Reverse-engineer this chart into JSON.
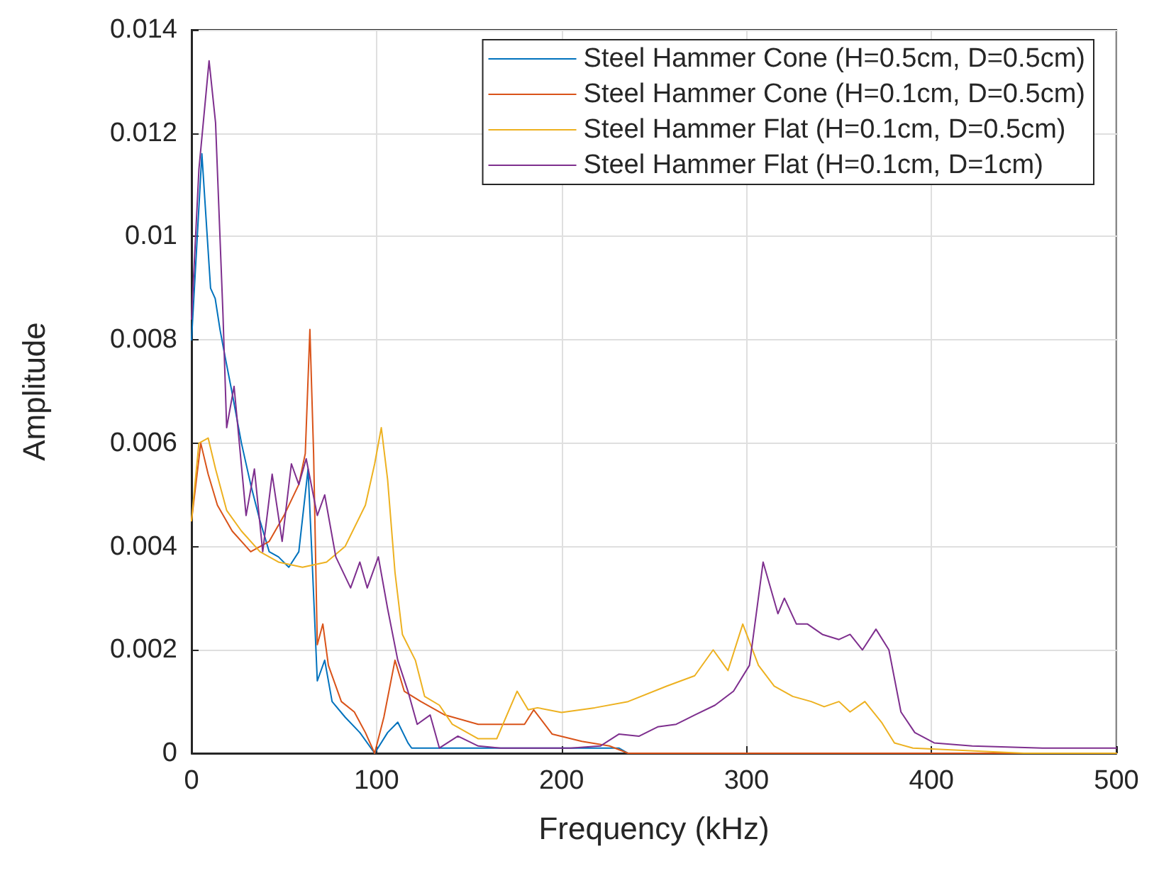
{
  "chart_data": {
    "type": "line",
    "xlabel": "Frequency (kHz)",
    "ylabel": "Amplitude",
    "xlim": [
      0,
      500
    ],
    "xticks": [
      0,
      100,
      200,
      300,
      400,
      500
    ],
    "ylim": [
      0,
      0.014
    ],
    "yticks": [
      0,
      0.002,
      0.004,
      0.006,
      0.008,
      0.01,
      0.012,
      0.014
    ],
    "grid": true,
    "legend": "top right",
    "marker": "none",
    "line_style": "solid",
    "series": [
      {
        "name": "Steel Hammer Cone (H=0.5cm, D=0.5cm)",
        "color": "#0072bd",
        "x": [
          0,
          5.6,
          10.3,
          12.8,
          15.4,
          18,
          21.8,
          27,
          32,
          37,
          42,
          47,
          52.6,
          58,
          63,
          65,
          68,
          72,
          76,
          83,
          91,
          99,
          106,
          111.5,
          117,
          119,
          152,
          231,
          236
        ],
        "values": [
          0.008,
          0.0116,
          0.009,
          0.0088,
          0.0082,
          0.0077,
          0.007,
          0.006,
          0.0052,
          0.0045,
          0.0039,
          0.0038,
          0.0036,
          0.0039,
          0.0055,
          0.0039,
          0.0014,
          0.0018,
          0.001,
          0.0007,
          0.0004,
          0,
          0.0004,
          0.0006,
          0.0002,
          0.0001,
          0.0001,
          0.0001,
          0
        ]
      },
      {
        "name": "Steel Hammer Cone (H=0.1cm, D=0.5cm)",
        "color": "#d95319",
        "x": [
          0,
          5,
          9,
          14,
          22,
          32,
          42,
          50,
          58,
          61.5,
          64,
          66,
          68,
          71,
          74,
          81,
          88,
          94,
          99,
          104,
          110,
          115,
          124,
          137,
          155,
          170,
          180,
          185,
          195,
          211,
          226,
          236,
          300,
          400,
          500
        ],
        "values": [
          0.0045,
          0.006,
          0.0054,
          0.0048,
          0.0043,
          0.0039,
          0.0041,
          0.0046,
          0.0052,
          0.0058,
          0.0082,
          0.0058,
          0.0021,
          0.0025,
          0.0017,
          0.001,
          0.0008,
          0.0004,
          0,
          0.0007,
          0.0018,
          0.0012,
          0.001,
          0.00074,
          0.00056,
          0.00056,
          0.00056,
          0.00084,
          0.00037,
          0.00023,
          0.00014,
          0,
          0,
          0,
          0
        ]
      },
      {
        "name": "Steel Hammer Flat (H=0.1cm, D=0.5cm)",
        "color": "#edb120",
        "x": [
          0,
          4,
          9,
          13,
          19,
          27,
          37,
          47,
          60,
          73,
          83,
          94,
          99,
          102.6,
          106,
          110,
          114,
          121,
          126,
          134,
          141,
          155,
          165,
          176,
          182,
          187,
          200,
          218,
          236,
          257,
          272,
          282,
          290,
          298,
          306.5,
          315,
          325,
          335,
          342,
          350,
          356,
          364,
          373,
          380,
          390,
          450,
          500
        ],
        "values": [
          0.0045,
          0.006,
          0.0061,
          0.0055,
          0.0047,
          0.0043,
          0.0039,
          0.0037,
          0.0036,
          0.0037,
          0.004,
          0.0048,
          0.0056,
          0.0063,
          0.0053,
          0.0035,
          0.0023,
          0.0018,
          0.0011,
          0.00093,
          0.00056,
          0.00028,
          0.00028,
          0.0012,
          0.00084,
          0.00088,
          0.00079,
          0.00088,
          0.001,
          0.0013,
          0.0015,
          0.002,
          0.0016,
          0.0025,
          0.0017,
          0.0013,
          0.0011,
          0.001,
          0.0009,
          0.001,
          0.0008,
          0.001,
          0.0006,
          0.0002,
          0.0001,
          0,
          0
        ]
      },
      {
        "name": "Steel Hammer Flat (H=0.1cm, D=1cm)",
        "color": "#7e2f8e",
        "x": [
          0,
          4,
          9.5,
          13,
          17,
          19,
          23,
          29.5,
          34,
          38.5,
          43.6,
          49,
          54,
          58,
          62,
          68,
          72,
          78,
          86,
          91,
          95,
          101,
          106,
          111.5,
          117,
          122,
          129,
          134,
          144,
          155,
          167,
          180,
          205,
          221,
          231,
          242,
          252,
          262,
          272,
          283,
          293,
          301.6,
          309,
          317,
          320.5,
          327,
          333,
          341,
          350,
          356,
          362.7,
          370,
          377,
          383.5,
          391,
          401.5,
          422,
          460,
          500
        ],
        "values": [
          0.0084,
          0.0113,
          0.0134,
          0.0122,
          0.0085,
          0.0063,
          0.0071,
          0.0046,
          0.0055,
          0.0039,
          0.0054,
          0.0041,
          0.0056,
          0.0052,
          0.0057,
          0.0046,
          0.005,
          0.0038,
          0.0032,
          0.0037,
          0.0032,
          0.0038,
          0.0028,
          0.0018,
          0.0012,
          0.00056,
          0.00074,
          0.0001,
          0.00033,
          0.00014,
          0.0001,
          0.0001,
          0.0001,
          0.00014,
          0.00037,
          0.00033,
          0.00051,
          0.00056,
          0.00074,
          0.00093,
          0.0012,
          0.0017,
          0.0037,
          0.0027,
          0.003,
          0.0025,
          0.0025,
          0.0023,
          0.0022,
          0.0023,
          0.002,
          0.0024,
          0.002,
          0.0008,
          0.0004,
          0.0002,
          0.00014,
          0.0001,
          0.0001
        ]
      }
    ]
  }
}
